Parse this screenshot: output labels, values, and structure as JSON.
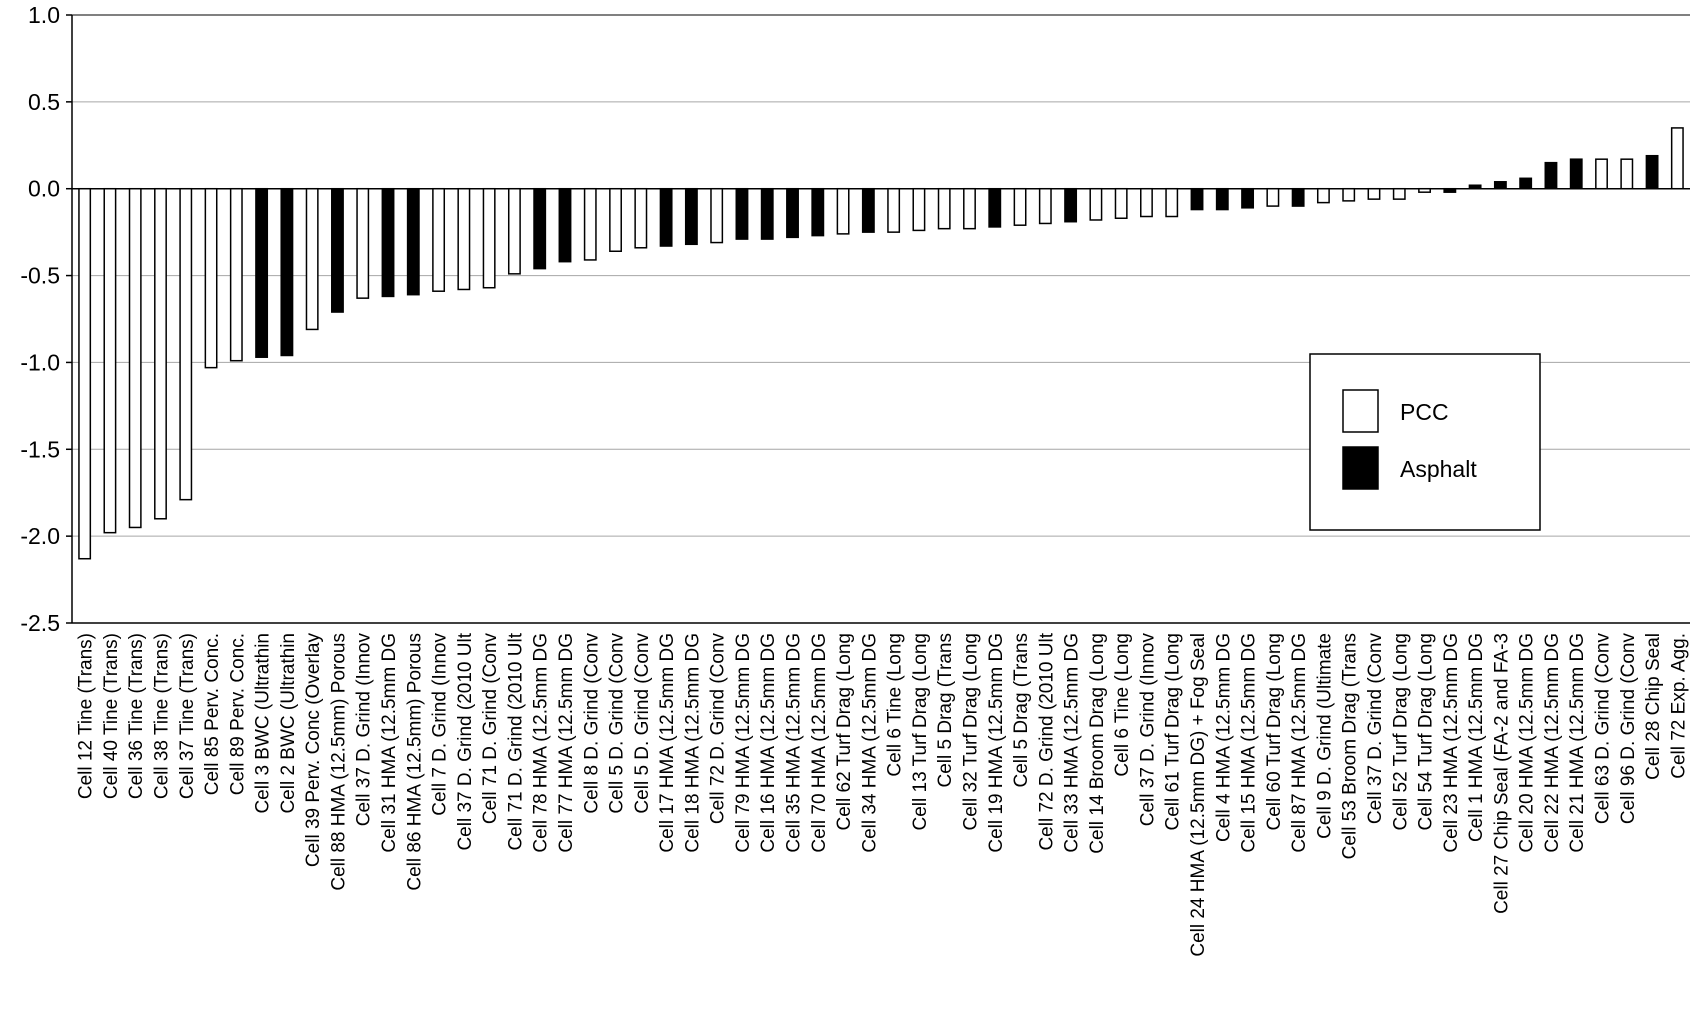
{
  "colors": {
    "pcc_fill": "#ffffff",
    "asphalt_fill": "#000000",
    "bar_stroke": "#000000",
    "grid": "#a6a6a6",
    "axis": "#000000"
  },
  "chart_data": {
    "type": "bar",
    "title": "",
    "xlabel": "",
    "ylabel": "",
    "ylim": [
      -2.5,
      1.0
    ],
    "yticks": [
      "1.0",
      "0.5",
      "0.0",
      "-0.5",
      "-1.0",
      "-1.5",
      "-2.0",
      "-2.5"
    ],
    "ytick_values": [
      1.0,
      0.5,
      0.0,
      -0.5,
      -1.0,
      -1.5,
      -2.0,
      -2.5
    ],
    "grid": "horizontal",
    "legend": {
      "placement": "right",
      "entries": [
        {
          "label": "PCC",
          "type": "PCC"
        },
        {
          "label": "Asphalt",
          "type": "Asphalt"
        }
      ]
    },
    "bars": [
      {
        "label": "Cell 12 Tine (Trans)",
        "value": -2.13,
        "type": "PCC"
      },
      {
        "label": "Cell 40 Tine (Trans)",
        "value": -1.98,
        "type": "PCC"
      },
      {
        "label": "Cell 36 Tine (Trans)",
        "value": -1.95,
        "type": "PCC"
      },
      {
        "label": "Cell 38 Tine (Trans)",
        "value": -1.9,
        "type": "PCC"
      },
      {
        "label": "Cell 37 Tine (Trans)",
        "value": -1.79,
        "type": "PCC"
      },
      {
        "label": "Cell 85 Perv. Conc.",
        "value": -1.03,
        "type": "PCC"
      },
      {
        "label": "Cell 89 Perv. Conc.",
        "value": -0.99,
        "type": "PCC"
      },
      {
        "label": "Cell 3 BWC (Ultrathin",
        "value": -0.97,
        "type": "Asphalt"
      },
      {
        "label": "Cell 2 BWC (Ultrathin",
        "value": -0.96,
        "type": "Asphalt"
      },
      {
        "label": "Cell 39 Perv. Conc (Overlay",
        "value": -0.81,
        "type": "PCC"
      },
      {
        "label": "Cell 88 HMA (12.5mm) Porous",
        "value": -0.71,
        "type": "Asphalt"
      },
      {
        "label": "Cell 37 D. Grind (Innov",
        "value": -0.63,
        "type": "PCC"
      },
      {
        "label": "Cell 31 HMA (12.5mm DG",
        "value": -0.62,
        "type": "Asphalt"
      },
      {
        "label": "Cell 86 HMA (12.5mm) Porous",
        "value": -0.61,
        "type": "Asphalt"
      },
      {
        "label": "Cell 7 D. Grind (Innov",
        "value": -0.59,
        "type": "PCC"
      },
      {
        "label": "Cell 37 D. Grind (2010 Ult",
        "value": -0.58,
        "type": "PCC"
      },
      {
        "label": "Cell 71 D. Grind (Conv",
        "value": -0.57,
        "type": "PCC"
      },
      {
        "label": "Cell 71 D. Grind (2010 Ult",
        "value": -0.49,
        "type": "PCC"
      },
      {
        "label": "Cell 78 HMA (12.5mm DG",
        "value": -0.46,
        "type": "Asphalt"
      },
      {
        "label": "Cell 77 HMA (12.5mm DG",
        "value": -0.42,
        "type": "Asphalt"
      },
      {
        "label": "Cell 8 D. Grind (Conv",
        "value": -0.41,
        "type": "PCC"
      },
      {
        "label": "Cell 5 D. Grind (Conv",
        "value": -0.36,
        "type": "PCC"
      },
      {
        "label": "Cell 5 D. Grind (Conv",
        "value": -0.34,
        "type": "PCC"
      },
      {
        "label": "Cell 17 HMA (12.5mm DG",
        "value": -0.33,
        "type": "Asphalt"
      },
      {
        "label": "Cell 18 HMA (12.5mm DG",
        "value": -0.32,
        "type": "Asphalt"
      },
      {
        "label": "Cell 72 D. Grind (Conv",
        "value": -0.31,
        "type": "PCC"
      },
      {
        "label": "Cell 79 HMA (12.5mm DG",
        "value": -0.29,
        "type": "Asphalt"
      },
      {
        "label": "Cell 16 HMA (12.5mm DG",
        "value": -0.29,
        "type": "Asphalt"
      },
      {
        "label": "Cell 35 HMA (12.5mm DG",
        "value": -0.28,
        "type": "Asphalt"
      },
      {
        "label": "Cell 70 HMA (12.5mm DG",
        "value": -0.27,
        "type": "Asphalt"
      },
      {
        "label": "Cell 62 Turf Drag (Long",
        "value": -0.26,
        "type": "PCC"
      },
      {
        "label": "Cell 34 HMA (12.5mm DG",
        "value": -0.25,
        "type": "Asphalt"
      },
      {
        "label": "Cell 6 Tine (Long",
        "value": -0.25,
        "type": "PCC"
      },
      {
        "label": "Cell 13 Turf Drag (Long",
        "value": -0.24,
        "type": "PCC"
      },
      {
        "label": "Cell 5 Drag (Trans",
        "value": -0.23,
        "type": "PCC"
      },
      {
        "label": "Cell 32 Turf Drag (Long",
        "value": -0.23,
        "type": "PCC"
      },
      {
        "label": "Cell 19 HMA (12.5mm DG",
        "value": -0.22,
        "type": "Asphalt"
      },
      {
        "label": "Cell 5 Drag (Trans",
        "value": -0.21,
        "type": "PCC"
      },
      {
        "label": "Cell 72 D. Grind (2010 Ult",
        "value": -0.2,
        "type": "PCC"
      },
      {
        "label": "Cell 33 HMA (12.5mm DG",
        "value": -0.19,
        "type": "Asphalt"
      },
      {
        "label": "Cell 14 Broom Drag (Long",
        "value": -0.18,
        "type": "PCC"
      },
      {
        "label": "Cell 6 Tine (Long",
        "value": -0.17,
        "type": "PCC"
      },
      {
        "label": "Cell 37 D. Grind (Innov",
        "value": -0.16,
        "type": "PCC"
      },
      {
        "label": "Cell 61 Turf Drag (Long",
        "value": -0.16,
        "type": "PCC"
      },
      {
        "label": "Cell 24 HMA (12.5mm DG) + Fog Seal",
        "value": -0.12,
        "type": "Asphalt"
      },
      {
        "label": "Cell 4 HMA (12.5mm DG",
        "value": -0.12,
        "type": "Asphalt"
      },
      {
        "label": "Cell 15 HMA (12.5mm DG",
        "value": -0.11,
        "type": "Asphalt"
      },
      {
        "label": "Cell 60 Turf Drag (Long",
        "value": -0.1,
        "type": "PCC"
      },
      {
        "label": "Cell 87 HMA (12.5mm DG",
        "value": -0.1,
        "type": "Asphalt"
      },
      {
        "label": "Cell 9 D. Grind (Ultimate",
        "value": -0.08,
        "type": "PCC"
      },
      {
        "label": "Cell 53 Broom Drag (Trans",
        "value": -0.07,
        "type": "PCC"
      },
      {
        "label": "Cell 37 D. Grind (Conv",
        "value": -0.06,
        "type": "PCC"
      },
      {
        "label": "Cell 52 Turf Drag (Long",
        "value": -0.06,
        "type": "PCC"
      },
      {
        "label": "Cell 54 Turf Drag (Long",
        "value": -0.02,
        "type": "PCC"
      },
      {
        "label": "Cell 23 HMA (12.5mm DG",
        "value": -0.02,
        "type": "Asphalt"
      },
      {
        "label": "Cell 1 HMA (12.5mm DG",
        "value": 0.02,
        "type": "Asphalt"
      },
      {
        "label": "Cell 27 Chip Seal (FA-2 and FA-3",
        "value": 0.04,
        "type": "Asphalt"
      },
      {
        "label": "Cell 20 HMA (12.5mm DG",
        "value": 0.06,
        "type": "Asphalt"
      },
      {
        "label": "Cell 22 HMA (12.5mm DG",
        "value": 0.15,
        "type": "Asphalt"
      },
      {
        "label": "Cell 21 HMA (12.5mm DG",
        "value": 0.17,
        "type": "Asphalt"
      },
      {
        "label": "Cell 63 D. Grind (Conv",
        "value": 0.17,
        "type": "PCC"
      },
      {
        "label": "Cell 96 D. Grind (Conv",
        "value": 0.17,
        "type": "PCC"
      },
      {
        "label": "Cell 28 Chip Seal",
        "value": 0.19,
        "type": "Asphalt"
      },
      {
        "label": "Cell 72 Exp. Agg.",
        "value": 0.35,
        "type": "PCC"
      }
    ]
  }
}
